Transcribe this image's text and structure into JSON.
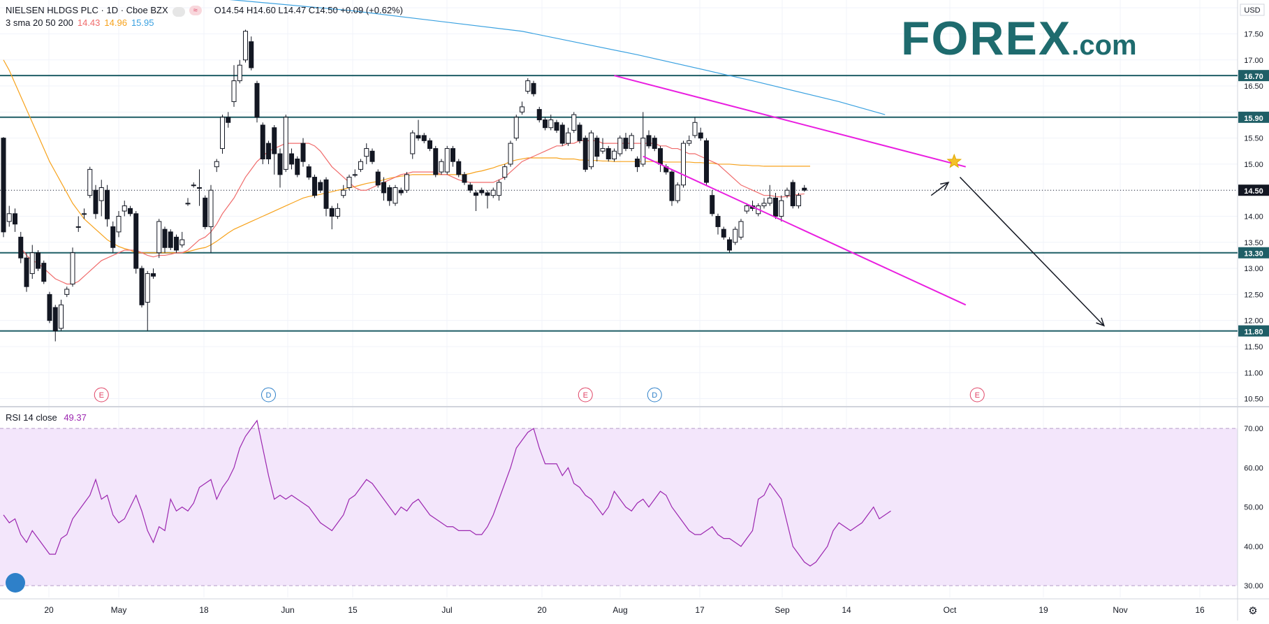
{
  "legend": {
    "symbol": "NIELSEN HLDGS PLC · 1D · Cboe BZX",
    "ohlc": "O14.54  H14.60  L14.47  C14.50  +0.09 (+0.62%)",
    "sma_label": "3 sma 20 50 200",
    "sma20": "14.43",
    "sma50": "14.96",
    "sma200": "15.95",
    "sma_colors": {
      "sma20": "#f06b6b",
      "sma50": "#f7a21b",
      "sma200": "#3aa1e0"
    }
  },
  "logo": {
    "main": "FOREX",
    "suffix": ".com",
    "color": "#1e6b6e"
  },
  "rsi_legend": {
    "label": "RSI 14 close",
    "value": "49.37",
    "color": "#9c27b0"
  },
  "currency": "USD",
  "chart_data": {
    "type": "candlestick",
    "price_axis": {
      "ylim": [
        10.4,
        18.15
      ],
      "ticks": [
        "10.50",
        "11.00",
        "11.50",
        "12.00",
        "12.50",
        "13.00",
        "13.50",
        "14.00",
        "14.50",
        "15.00",
        "15.50",
        "16.00",
        "16.50",
        "17.00",
        "17.50",
        "18.00"
      ]
    },
    "rsi_axis": {
      "ylim": [
        27,
        75
      ],
      "ticks": [
        "30.00",
        "40.00",
        "50.00",
        "60.00",
        "70.00"
      ],
      "band": [
        30,
        70
      ]
    },
    "x_ticks": [
      "20",
      "May",
      "18",
      "Jun",
      "15",
      "Jul",
      "20",
      "Aug",
      "17",
      "Sep",
      "14",
      "Oct",
      "19",
      "Nov",
      "16"
    ],
    "horizontal_levels": [
      {
        "value": 16.7,
        "label": "16.70"
      },
      {
        "value": 15.9,
        "label": "15.90"
      },
      {
        "value": 13.3,
        "label": "13.30"
      },
      {
        "value": 11.8,
        "label": "11.80"
      }
    ],
    "last_price": {
      "value": 14.5,
      "label": "14.50"
    },
    "candles": [
      [
        15.5,
        13.7,
        15.52,
        13.6
      ],
      [
        13.9,
        14.05,
        14.2,
        13.8
      ],
      [
        14.05,
        13.85,
        14.15,
        13.7
      ],
      [
        13.6,
        13.2,
        13.7,
        13.1
      ],
      [
        13.2,
        12.65,
        13.3,
        12.55
      ],
      [
        12.9,
        13.3,
        13.45,
        12.8
      ],
      [
        13.3,
        13.0,
        13.35,
        12.95
      ],
      [
        13.1,
        12.75,
        13.15,
        12.7
      ],
      [
        12.5,
        12.0,
        12.55,
        11.95
      ],
      [
        12.25,
        11.8,
        12.3,
        11.6
      ],
      [
        11.85,
        12.3,
        12.4,
        11.8
      ],
      [
        12.5,
        12.6,
        12.65,
        12.45
      ],
      [
        12.7,
        13.3,
        13.4,
        12.65
      ],
      [
        13.8,
        13.8,
        14.0,
        13.7
      ],
      [
        14.05,
        14.05,
        14.15,
        13.95
      ],
      [
        14.4,
        14.9,
        14.95,
        14.35
      ],
      [
        14.5,
        14.05,
        14.6,
        13.95
      ],
      [
        14.3,
        14.55,
        14.7,
        14.0
      ],
      [
        14.5,
        13.95,
        14.6,
        13.8
      ],
      [
        13.8,
        13.4,
        13.9,
        13.3
      ],
      [
        13.7,
        14.0,
        14.1,
        13.6
      ],
      [
        14.1,
        14.2,
        14.3,
        14.0
      ],
      [
        14.15,
        14.05,
        14.2,
        14.0
      ],
      [
        14.05,
        13.0,
        14.1,
        12.9
      ],
      [
        13.0,
        12.3,
        13.05,
        12.25
      ],
      [
        12.35,
        12.9,
        12.95,
        11.8
      ],
      [
        12.9,
        12.85,
        13.0,
        12.8
      ],
      [
        13.3,
        13.9,
        13.95,
        13.2
      ],
      [
        13.75,
        13.4,
        13.8,
        13.3
      ],
      [
        13.7,
        13.4,
        13.75,
        13.35
      ],
      [
        13.6,
        13.35,
        13.65,
        13.3
      ],
      [
        13.45,
        13.55,
        13.7,
        13.4
      ],
      [
        14.25,
        14.25,
        14.35,
        14.2
      ],
      [
        14.6,
        14.6,
        14.65,
        14.55
      ],
      [
        14.55,
        14.55,
        14.9,
        14.2
      ],
      [
        14.35,
        13.8,
        14.4,
        13.75
      ],
      [
        13.8,
        14.5,
        14.6,
        13.3
      ],
      [
        14.95,
        15.05,
        15.1,
        14.85
      ],
      [
        15.3,
        15.9,
        15.95,
        15.2
      ],
      [
        15.9,
        15.8,
        16.0,
        15.7
      ],
      [
        16.2,
        16.6,
        16.9,
        16.1
      ],
      [
        16.6,
        16.9,
        17.0,
        16.55
      ],
      [
        17.0,
        17.55,
        17.58,
        16.95
      ],
      [
        17.35,
        16.85,
        17.45,
        16.8
      ],
      [
        16.55,
        15.9,
        16.6,
        15.8
      ],
      [
        15.75,
        15.1,
        15.8,
        15.0
      ],
      [
        15.4,
        15.1,
        15.45,
        15.0
      ],
      [
        15.7,
        15.2,
        15.75,
        14.8
      ],
      [
        15.2,
        14.8,
        15.3,
        14.55
      ],
      [
        14.9,
        15.9,
        15.95,
        14.85
      ],
      [
        15.2,
        15.0,
        15.3,
        14.9
      ],
      [
        15.1,
        14.8,
        15.15,
        14.75
      ],
      [
        15.4,
        15.05,
        15.5,
        14.95
      ],
      [
        14.95,
        14.75,
        15.0,
        14.7
      ],
      [
        14.75,
        14.4,
        14.8,
        14.35
      ],
      [
        14.65,
        14.5,
        14.7,
        14.45
      ],
      [
        14.7,
        14.15,
        14.75,
        14.0
      ],
      [
        14.15,
        14.0,
        14.2,
        13.75
      ],
      [
        14.0,
        14.15,
        14.25,
        13.95
      ],
      [
        14.4,
        14.5,
        14.6,
        14.35
      ],
      [
        14.55,
        14.75,
        14.8,
        14.5
      ],
      [
        14.8,
        14.8,
        14.9,
        14.75
      ],
      [
        14.9,
        15.05,
        15.1,
        14.85
      ],
      [
        15.15,
        15.3,
        15.4,
        15.0
      ],
      [
        15.25,
        15.05,
        15.3,
        15.0
      ],
      [
        14.85,
        14.6,
        14.9,
        14.55
      ],
      [
        14.65,
        14.45,
        14.75,
        14.3
      ],
      [
        14.55,
        14.3,
        14.6,
        14.2
      ],
      [
        14.25,
        14.55,
        14.6,
        14.2
      ],
      [
        14.5,
        14.45,
        14.55,
        14.4
      ],
      [
        14.5,
        14.8,
        14.85,
        14.45
      ],
      [
        15.2,
        15.6,
        15.65,
        15.1
      ],
      [
        15.55,
        15.5,
        15.85,
        15.45
      ],
      [
        15.55,
        15.45,
        15.6,
        15.4
      ],
      [
        15.45,
        15.3,
        15.5,
        15.25
      ],
      [
        15.3,
        14.8,
        15.35,
        14.75
      ],
      [
        14.85,
        15.05,
        15.1,
        14.8
      ],
      [
        14.85,
        15.3,
        15.35,
        14.8
      ],
      [
        15.3,
        15.05,
        15.35,
        14.95
      ],
      [
        15.05,
        14.8,
        15.1,
        14.75
      ],
      [
        14.8,
        14.65,
        14.85,
        14.6
      ],
      [
        14.6,
        14.5,
        14.65,
        14.45
      ],
      [
        14.45,
        14.4,
        14.5,
        14.1
      ],
      [
        14.5,
        14.45,
        14.55,
        14.4
      ],
      [
        14.45,
        14.4,
        14.5,
        14.15
      ],
      [
        14.4,
        14.5,
        14.55,
        14.35
      ],
      [
        14.4,
        14.65,
        14.7,
        14.3
      ],
      [
        14.75,
        14.95,
        15.0,
        14.7
      ],
      [
        15.0,
        15.4,
        15.45,
        14.95
      ],
      [
        15.5,
        15.9,
        15.95,
        15.45
      ],
      [
        16.0,
        16.1,
        16.2,
        15.95
      ],
      [
        16.4,
        16.6,
        16.65,
        16.35
      ],
      [
        16.55,
        16.35,
        16.6,
        16.3
      ],
      [
        16.05,
        15.85,
        16.1,
        15.8
      ],
      [
        15.85,
        15.7,
        15.9,
        15.65
      ],
      [
        15.7,
        15.85,
        15.95,
        15.65
      ],
      [
        15.8,
        15.65,
        15.85,
        15.6
      ],
      [
        15.75,
        15.4,
        15.8,
        15.35
      ],
      [
        15.4,
        15.6,
        15.7,
        15.35
      ],
      [
        15.65,
        15.95,
        16.0,
        15.6
      ],
      [
        15.75,
        15.45,
        15.8,
        15.4
      ],
      [
        15.5,
        14.9,
        15.55,
        14.85
      ],
      [
        14.95,
        15.6,
        15.65,
        14.9
      ],
      [
        15.5,
        15.15,
        15.55,
        15.05
      ],
      [
        15.25,
        15.3,
        15.5,
        15.2
      ],
      [
        15.3,
        15.1,
        15.35,
        15.05
      ],
      [
        15.1,
        15.25,
        15.3,
        15.05
      ],
      [
        15.2,
        15.5,
        15.55,
        15.15
      ],
      [
        15.5,
        15.3,
        15.6,
        15.25
      ],
      [
        15.3,
        15.55,
        15.6,
        15.25
      ],
      [
        15.1,
        14.95,
        15.15,
        14.85
      ],
      [
        15.0,
        15.5,
        16.0,
        14.95
      ],
      [
        15.55,
        15.35,
        15.65,
        15.3
      ],
      [
        15.5,
        15.3,
        15.55,
        15.25
      ],
      [
        15.3,
        15.0,
        15.35,
        14.85
      ],
      [
        14.95,
        14.85,
        15.0,
        14.8
      ],
      [
        14.85,
        14.3,
        14.9,
        14.2
      ],
      [
        14.3,
        14.6,
        14.65,
        14.25
      ],
      [
        14.6,
        15.4,
        15.45,
        14.55
      ],
      [
        15.4,
        15.45,
        15.55,
        15.35
      ],
      [
        15.55,
        15.8,
        15.9,
        15.5
      ],
      [
        15.6,
        15.5,
        15.7,
        15.45
      ],
      [
        15.45,
        14.65,
        15.5,
        14.6
      ],
      [
        14.4,
        14.05,
        14.5,
        14.0
      ],
      [
        14.0,
        13.8,
        14.05,
        13.65
      ],
      [
        13.75,
        13.6,
        13.8,
        13.55
      ],
      [
        13.55,
        13.35,
        13.6,
        13.3
      ],
      [
        13.5,
        13.75,
        13.8,
        13.45
      ],
      [
        13.6,
        13.9,
        13.95,
        13.55
      ],
      [
        14.1,
        14.2,
        14.25,
        14.05
      ],
      [
        14.2,
        14.15,
        14.3,
        14.1
      ],
      [
        14.05,
        14.2,
        14.25,
        14.0
      ],
      [
        14.2,
        14.25,
        14.35,
        14.15
      ],
      [
        14.25,
        14.35,
        14.6,
        14.2
      ],
      [
        14.35,
        14.0,
        14.45,
        13.95
      ],
      [
        14.0,
        14.3,
        14.4,
        13.9
      ],
      [
        14.4,
        14.5,
        14.55,
        14.35
      ],
      [
        14.65,
        14.2,
        14.7,
        14.15
      ],
      [
        14.2,
        14.4,
        14.45,
        14.15
      ],
      [
        14.54,
        14.5,
        14.6,
        14.47
      ]
    ],
    "sma20": [
      null,
      null,
      null,
      13.4,
      13.25,
      13.15,
      13.1,
      13.0,
      12.9,
      12.8,
      12.75,
      12.7,
      12.7,
      12.75,
      12.85,
      12.95,
      13.05,
      13.15,
      13.2,
      13.25,
      13.3,
      13.35,
      13.35,
      13.35,
      13.3,
      13.25,
      13.22,
      13.25,
      13.25,
      13.27,
      13.3,
      13.3,
      13.35,
      13.45,
      13.55,
      13.6,
      13.7,
      13.85,
      14.05,
      14.2,
      14.35,
      14.55,
      14.75,
      14.9,
      15.05,
      15.15,
      15.25,
      15.3,
      15.35,
      15.4,
      15.4,
      15.4,
      15.4,
      15.4,
      15.35,
      15.25,
      15.1,
      14.95,
      14.85,
      14.75,
      14.65,
      14.55,
      14.5,
      14.5,
      14.55,
      14.6,
      14.65,
      14.7,
      14.75,
      14.8,
      14.82,
      14.85,
      14.85,
      14.85,
      14.85,
      14.85,
      14.8,
      14.8,
      14.75,
      14.7,
      14.67,
      14.65,
      14.65,
      14.65,
      14.65,
      14.65,
      14.7,
      14.75,
      14.85,
      14.95,
      15.05,
      15.1,
      15.15,
      15.2,
      15.25,
      15.3,
      15.35,
      15.35,
      15.4,
      15.4,
      15.45,
      15.45,
      15.45,
      15.45,
      15.4,
      15.4,
      15.4,
      15.4,
      15.4,
      15.4,
      15.4,
      15.4,
      15.4,
      15.4,
      15.35,
      15.35,
      15.3,
      15.3,
      15.25,
      15.2,
      15.2,
      15.15,
      15.1,
      15.05,
      15.0,
      14.9,
      14.8,
      14.7,
      14.6,
      14.55,
      14.5,
      14.45,
      14.4,
      14.4,
      14.38,
      14.37,
      14.38,
      14.4,
      14.42,
      14.43
    ],
    "sma50_start": 0,
    "sma50": [
      17.0,
      16.8,
      16.55,
      16.3,
      16.05,
      15.8,
      15.55,
      15.3,
      15.05,
      14.85,
      14.65,
      14.45,
      14.25,
      14.1,
      13.95,
      13.85,
      13.75,
      13.65,
      13.55,
      13.48,
      13.42,
      13.38,
      13.35,
      13.3,
      13.3,
      13.3,
      13.3,
      13.3,
      13.3,
      13.3,
      13.3,
      13.3,
      13.32,
      13.35,
      13.38,
      13.4,
      13.45,
      13.52,
      13.6,
      13.68,
      13.75,
      13.8,
      13.85,
      13.9,
      13.95,
      14.0,
      14.05,
      14.1,
      14.15,
      14.2,
      14.25,
      14.3,
      14.35,
      14.38,
      14.4,
      14.42,
      14.45,
      14.47,
      14.5,
      14.52,
      14.55,
      14.57,
      14.6,
      14.63,
      14.65,
      14.67,
      14.7,
      14.73,
      14.75,
      14.77,
      14.78,
      14.8,
      14.8,
      14.8,
      14.8,
      14.8,
      14.8,
      14.8,
      14.8,
      14.8,
      14.8,
      14.82,
      14.85,
      14.87,
      14.9,
      14.93,
      14.97,
      15.0,
      15.05,
      15.08,
      15.1,
      15.12,
      15.12,
      15.12,
      15.12,
      15.12,
      15.12,
      15.1,
      15.1,
      15.1,
      15.08,
      15.08,
      15.07,
      15.07,
      15.06,
      15.06,
      15.05,
      15.05,
      15.05,
      15.05,
      15.05,
      15.05,
      15.05,
      15.05,
      15.05,
      15.04,
      15.04,
      15.04,
      15.04,
      15.04,
      15.03,
      15.03,
      15.02,
      15.02,
      15.0,
      15.0,
      15.0,
      14.99,
      14.98,
      14.98,
      14.97,
      14.97,
      14.96,
      14.96,
      14.96,
      14.96,
      14.96,
      14.96,
      14.96,
      14.96,
      14.96
    ],
    "sma200": [
      [
        0,
        18.4
      ],
      [
        30,
        18.25
      ],
      [
        60,
        17.95
      ],
      [
        90,
        17.55
      ],
      [
        110,
        17.1
      ],
      [
        130,
        16.6
      ],
      [
        145,
        16.2
      ],
      [
        153,
        15.95
      ]
    ],
    "channel_lines": [
      {
        "from": [
          106,
          16.7
        ],
        "to": [
          167,
          14.95
        ]
      },
      {
        "from": [
          111,
          15.15
        ],
        "to": [
          167,
          12.3
        ]
      }
    ],
    "projection_arrow_short": {
      "from": [
        161,
        14.4
      ],
      "to": [
        164,
        14.65
      ]
    },
    "projection_arrow_long": {
      "from": [
        166,
        14.75
      ],
      "to": [
        191,
        11.9
      ]
    },
    "star": {
      "x": 165,
      "y": 15.05
    },
    "event_markers": [
      {
        "label": "E",
        "index": 17,
        "color": "#e04466"
      },
      {
        "label": "D",
        "index": 46,
        "color": "#2e80c9"
      },
      {
        "label": "E",
        "index": 101,
        "color": "#e04466"
      },
      {
        "label": "D",
        "index": 113,
        "color": "#2e80c9"
      },
      {
        "label": "E",
        "index": 169,
        "color": "#e04466"
      }
    ],
    "rsi": [
      48,
      46,
      47,
      43,
      41,
      44,
      42,
      40,
      38,
      38,
      42,
      43,
      47,
      49,
      51,
      53,
      57,
      52,
      53,
      48,
      46,
      47,
      50,
      53,
      49,
      44,
      41,
      45,
      44,
      52,
      49,
      50,
      49,
      51,
      55,
      56,
      57,
      52,
      55,
      57,
      60,
      65,
      68,
      70,
      72,
      65,
      58,
      52,
      53,
      52,
      53,
      52,
      51,
      50,
      48,
      46,
      45,
      44,
      46,
      48,
      52,
      53,
      55,
      57,
      56,
      54,
      52,
      50,
      48,
      50,
      49,
      51,
      52,
      50,
      48,
      47,
      46,
      45,
      45,
      44,
      44,
      44,
      43,
      43,
      45,
      48,
      52,
      56,
      60,
      65,
      67,
      69,
      70,
      65,
      61,
      61,
      61,
      58,
      60,
      56,
      55,
      53,
      52,
      50,
      48,
      50,
      54,
      52,
      50,
      49,
      51,
      52,
      50,
      52,
      54,
      53,
      50,
      48,
      46,
      44,
      43,
      43,
      44,
      45,
      43,
      42,
      42,
      41,
      40,
      42,
      44,
      52,
      53,
      56,
      54,
      52,
      46,
      40,
      38,
      36,
      35,
      36,
      38,
      40,
      44,
      46,
      45,
      44,
      45,
      46,
      48,
      50,
      47,
      48,
      49
    ]
  }
}
